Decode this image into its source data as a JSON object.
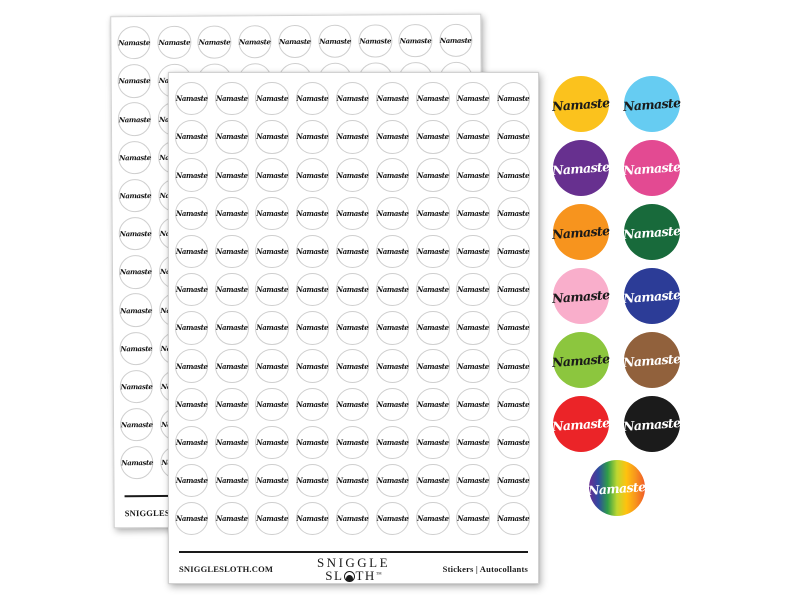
{
  "product": {
    "sticker_label": "Namaste",
    "sheets": {
      "count": 2,
      "rows": 12,
      "cols": 9
    },
    "sticker_ring_color": "#cfcfcf",
    "footer": {
      "website": "SNIGGLESLOTH.COM",
      "brand_line1": "SNIGGLE",
      "brand_line2": "SLOTH",
      "brand_line2_pre": "SL",
      "brand_line2_post": "TH",
      "trademark": "™",
      "right_text": "Stickers | Autocollants"
    }
  },
  "swatches": [
    {
      "name": "yellow",
      "bg": "#FBC21D",
      "text_color": "#1a1a1a"
    },
    {
      "name": "light-blue",
      "bg": "#66CCF2",
      "text_color": "#1a1a1a"
    },
    {
      "name": "purple",
      "bg": "#67308F",
      "text_color": "#ffffff"
    },
    {
      "name": "pink",
      "bg": "#E34A92",
      "text_color": "#ffffff"
    },
    {
      "name": "orange",
      "bg": "#F7941E",
      "text_color": "#1a1a1a"
    },
    {
      "name": "dark-green",
      "bg": "#186A3B",
      "text_color": "#ffffff"
    },
    {
      "name": "light-pink",
      "bg": "#F9AECB",
      "text_color": "#1a1a1a"
    },
    {
      "name": "royal-blue",
      "bg": "#2C3C97",
      "text_color": "#ffffff"
    },
    {
      "name": "lime-green",
      "bg": "#8CC63E",
      "text_color": "#1a1a1a"
    },
    {
      "name": "brown",
      "bg": "#91613C",
      "text_color": "#ffffff"
    },
    {
      "name": "red",
      "bg": "#EB2428",
      "text_color": "#ffffff"
    },
    {
      "name": "black",
      "bg": "#1B1B1B",
      "text_color": "#ffffff"
    },
    {
      "name": "rainbow",
      "gradient": [
        "#6A2D91",
        "#2F4AA1",
        "#2F9E48",
        "#BFD730",
        "#FFC20E",
        "#F7941E",
        "#F05A28"
      ],
      "text_color": "#ffffff"
    }
  ]
}
